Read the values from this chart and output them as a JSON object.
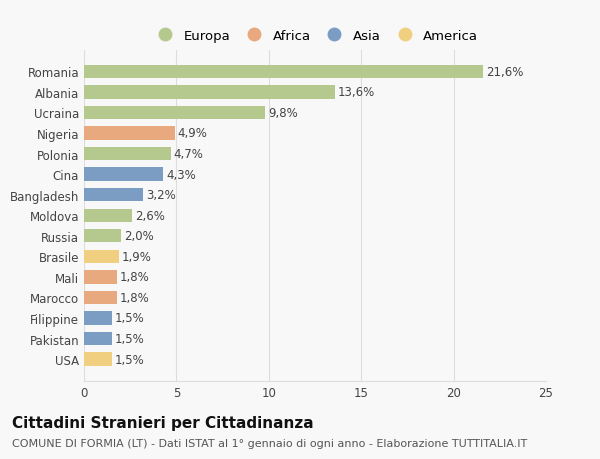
{
  "countries": [
    "Romania",
    "Albania",
    "Ucraina",
    "Nigeria",
    "Polonia",
    "Cina",
    "Bangladesh",
    "Moldova",
    "Russia",
    "Brasile",
    "Mali",
    "Marocco",
    "Filippine",
    "Pakistan",
    "USA"
  ],
  "values": [
    21.6,
    13.6,
    9.8,
    4.9,
    4.7,
    4.3,
    3.2,
    2.6,
    2.0,
    1.9,
    1.8,
    1.8,
    1.5,
    1.5,
    1.5
  ],
  "labels": [
    "21,6%",
    "13,6%",
    "9,8%",
    "4,9%",
    "4,7%",
    "4,3%",
    "3,2%",
    "2,6%",
    "2,0%",
    "1,9%",
    "1,8%",
    "1,8%",
    "1,5%",
    "1,5%",
    "1,5%"
  ],
  "continents": [
    "Europa",
    "Europa",
    "Europa",
    "Africa",
    "Europa",
    "Asia",
    "Asia",
    "Europa",
    "Europa",
    "America",
    "Africa",
    "Africa",
    "Asia",
    "Asia",
    "America"
  ],
  "continent_colors": {
    "Europa": "#b5c98e",
    "Africa": "#e8a97e",
    "Asia": "#7b9dc4",
    "America": "#f0d080"
  },
  "legend_order": [
    "Europa",
    "Africa",
    "Asia",
    "America"
  ],
  "title": "Cittadini Stranieri per Cittadinanza",
  "subtitle": "COMUNE DI FORMIA (LT) - Dati ISTAT al 1° gennaio di ogni anno - Elaborazione TUTTITALIA.IT",
  "xlim": [
    0,
    25
  ],
  "xticks": [
    0,
    5,
    10,
    15,
    20,
    25
  ],
  "background_color": "#f8f8f8",
  "grid_color": "#dddddd",
  "bar_height": 0.65,
  "title_fontsize": 11,
  "subtitle_fontsize": 8,
  "label_fontsize": 8.5,
  "tick_fontsize": 8.5,
  "legend_fontsize": 9.5
}
